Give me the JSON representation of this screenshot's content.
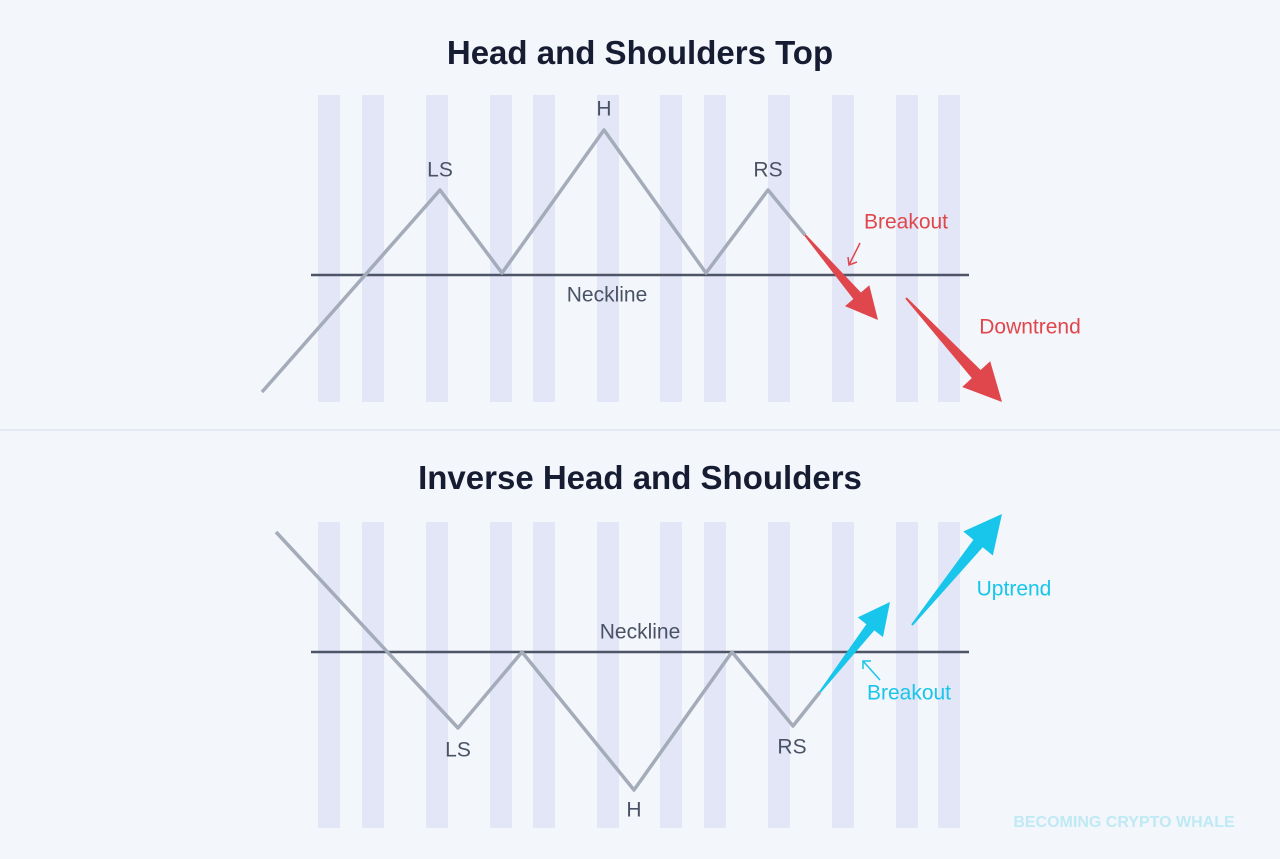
{
  "top": {
    "title": "Head and Shoulders Top",
    "labels": {
      "left_shoulder": "LS",
      "head": "H",
      "right_shoulder": "RS",
      "neckline": "Neckline",
      "breakout": "Breakout",
      "trend": "Downtrend"
    }
  },
  "bottom": {
    "title": "Inverse Head and Shoulders",
    "labels": {
      "left_shoulder": "LS",
      "head": "H",
      "right_shoulder": "RS",
      "neckline": "Neckline",
      "breakout": "Breakout",
      "trend": "Uptrend"
    }
  },
  "watermark": "BECOMING CRYPTO WHALE"
}
